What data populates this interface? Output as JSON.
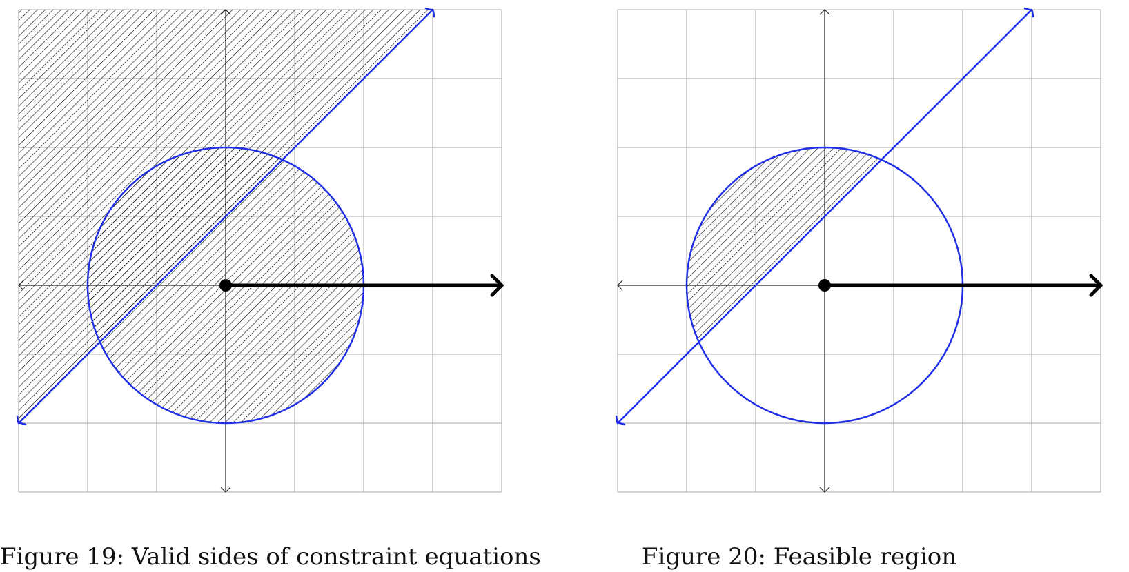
{
  "colors": {
    "constraint": "#1f2fe6",
    "axis": "#222222",
    "grid": "#a9a9a9",
    "hatch": "#000000",
    "vector": "#000000"
  },
  "figures": [
    {
      "id": "fig19",
      "caption": "Figure 19: Valid sides of constraint equations",
      "region": "union",
      "grid": {
        "xlim": [
          -3,
          4
        ],
        "ylim": [
          -3,
          4
        ],
        "step": 1
      },
      "circle": {
        "center": [
          0,
          0
        ],
        "radius": 2
      },
      "line": {
        "slope": 1,
        "intercept": 1,
        "from": [
          -3,
          -2
        ],
        "to": [
          3,
          4
        ]
      },
      "vector": {
        "from": [
          0,
          0
        ],
        "to": [
          4,
          0
        ]
      }
    },
    {
      "id": "fig20",
      "caption": "Figure 20: Feasible region",
      "region": "intersection",
      "grid": {
        "xlim": [
          -3,
          4
        ],
        "ylim": [
          -3,
          4
        ],
        "step": 1
      },
      "circle": {
        "center": [
          0,
          0
        ],
        "radius": 2
      },
      "line": {
        "slope": 1,
        "intercept": 1,
        "from": [
          -3,
          -2
        ],
        "to": [
          3,
          4
        ]
      },
      "vector": {
        "from": [
          0,
          0
        ],
        "to": [
          4,
          0
        ]
      }
    }
  ]
}
